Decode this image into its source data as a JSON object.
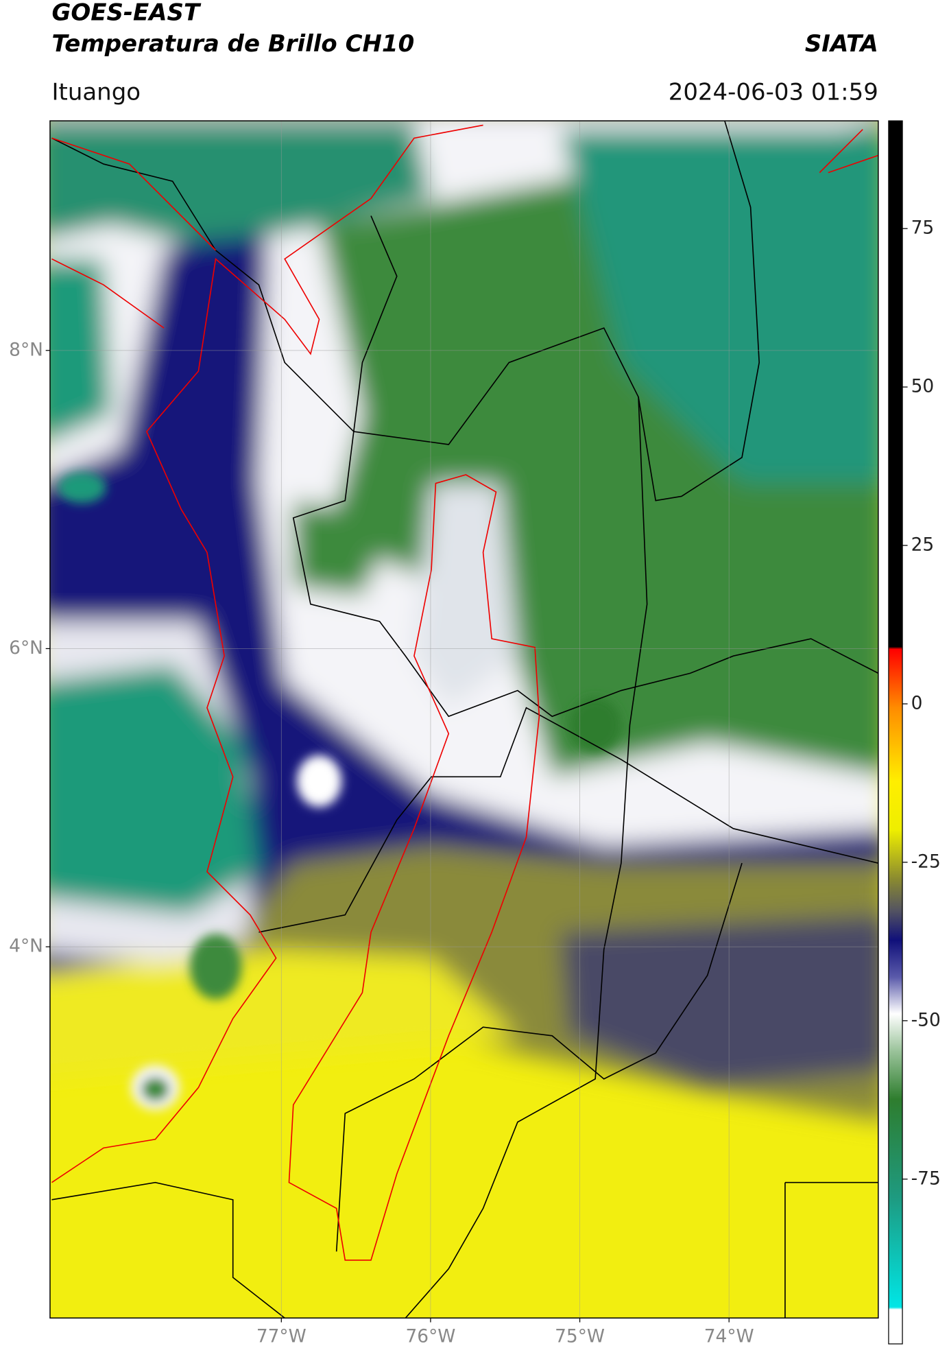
{
  "header": {
    "title": "GOES-EAST",
    "subtitle": "Temperatura de Brillo CH10",
    "organization": "SIATA",
    "location": "Ituango",
    "datetime": "2024-06-03 01:59"
  },
  "map": {
    "xlim": [
      -78.55,
      -73.0
    ],
    "ylim": [
      1.51,
      9.54
    ],
    "lat_ticks": [
      {
        "value": 8,
        "label": "8°N"
      },
      {
        "value": 6,
        "label": "6°N"
      },
      {
        "value": 4,
        "label": "4°N"
      }
    ],
    "lon_ticks": [
      {
        "value": -77,
        "label": "77°W"
      },
      {
        "value": -76,
        "label": "76°W"
      },
      {
        "value": -75,
        "label": "75°W"
      },
      {
        "value": -74,
        "label": "74°W"
      }
    ]
  },
  "colorbar": {
    "range": [
      -101,
      92
    ],
    "ticks": [
      75,
      50,
      25,
      0,
      -25,
      -50,
      -75
    ]
  }
}
